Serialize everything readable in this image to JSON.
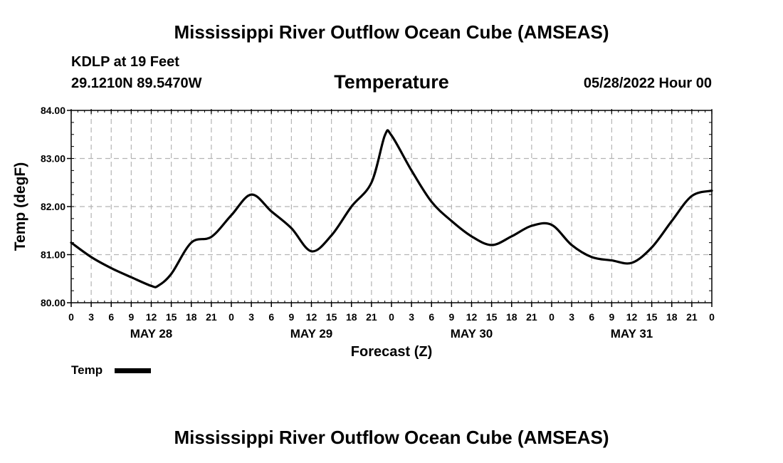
{
  "header": {
    "title": "Mississippi River Outflow Ocean Cube (AMSEAS)",
    "station": "KDLP at 19 Feet",
    "coords": "29.1210N  89.5470W",
    "variable": "Temperature",
    "datetime": "05/28/2022 Hour 00"
  },
  "footer": {
    "title": "Mississippi River Outflow Ocean Cube (AMSEAS)"
  },
  "chart_data": {
    "type": "line",
    "title": "Temperature",
    "xlabel": "Forecast (Z)",
    "ylabel": "Temp (degF)",
    "ylim": [
      80,
      84
    ],
    "xlim": [
      0,
      96
    ],
    "y_ticks": [
      "80.00",
      "81.00",
      "82.00",
      "83.00",
      "84.00"
    ],
    "x_tick_labels": [
      "0",
      "3",
      "6",
      "9",
      "12",
      "15",
      "18",
      "21",
      "0",
      "3",
      "6",
      "9",
      "12",
      "15",
      "18",
      "21",
      "0",
      "3",
      "6",
      "9",
      "12",
      "15",
      "18",
      "21",
      "0",
      "3",
      "6",
      "9",
      "12",
      "15",
      "18",
      "21",
      "0"
    ],
    "day_labels": [
      "MAY 28",
      "MAY 29",
      "MAY 30",
      "MAY 31"
    ],
    "grid": true,
    "legend": "bottom-left",
    "series": [
      {
        "name": "Temp",
        "x": [
          0,
          3,
          6,
          9,
          12,
          13,
          15,
          18,
          21,
          24,
          27,
          30,
          33,
          36,
          39,
          42,
          45,
          47,
          48,
          51,
          54,
          57,
          60,
          63,
          66,
          69,
          72,
          75,
          78,
          81,
          84,
          87,
          90,
          93,
          96
        ],
        "values": [
          81.25,
          80.95,
          80.72,
          80.53,
          80.35,
          80.35,
          80.6,
          81.25,
          81.37,
          81.82,
          82.25,
          81.9,
          81.55,
          81.07,
          81.4,
          82.0,
          82.5,
          83.48,
          83.48,
          82.75,
          82.1,
          81.7,
          81.38,
          81.2,
          81.38,
          81.6,
          81.62,
          81.2,
          80.95,
          80.88,
          80.83,
          81.15,
          81.7,
          82.22,
          82.33
        ]
      }
    ]
  }
}
